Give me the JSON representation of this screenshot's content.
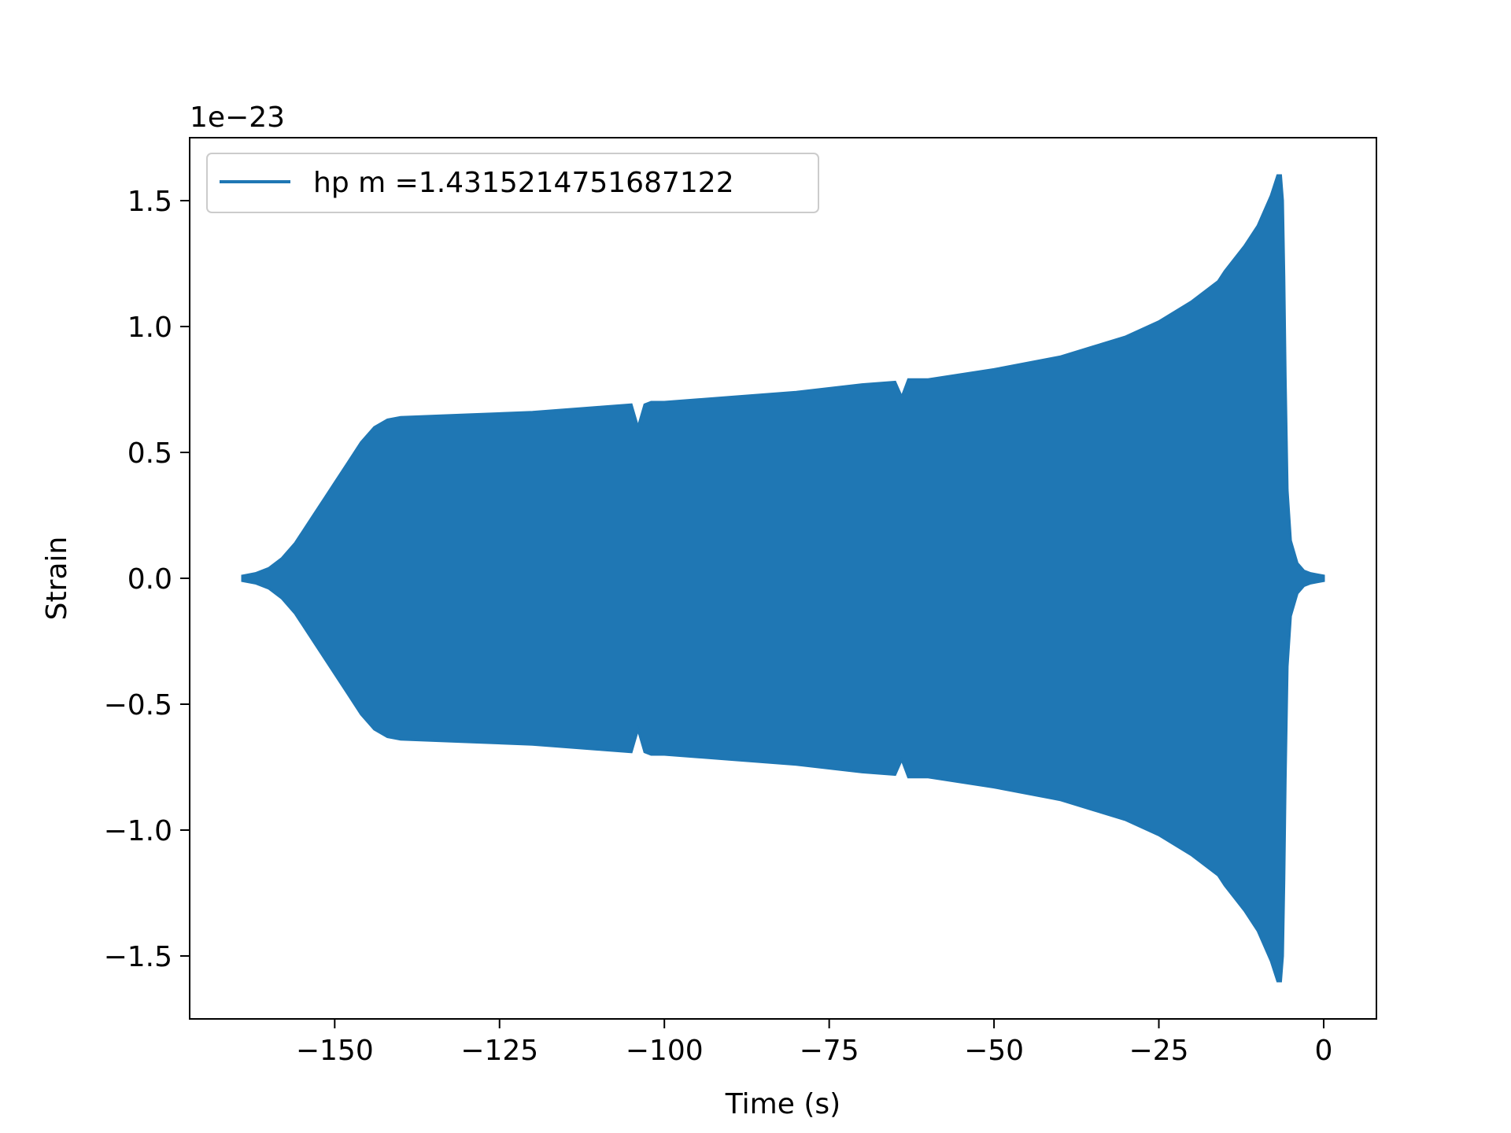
{
  "chart_data": {
    "type": "line",
    "title": "",
    "xlabel": "Time (s)",
    "ylabel": "Strain",
    "y_scale_label": "1e−23",
    "xlim": [
      -172,
      8
    ],
    "ylim": [
      -1.75,
      1.75
    ],
    "x_ticks": [
      -150,
      -125,
      -100,
      -75,
      -50,
      -25,
      0
    ],
    "x_tick_labels": [
      "−150",
      "−125",
      "−100",
      "−75",
      "−50",
      "−25",
      "0"
    ],
    "y_ticks": [
      -1.5,
      -1.0,
      -0.5,
      0.0,
      0.5,
      1.0,
      1.5
    ],
    "y_tick_labels": [
      "−1.5",
      "−1.0",
      "−0.5",
      "0.0",
      "0.5",
      "1.0",
      "1.5"
    ],
    "grid": false,
    "legend_position": "top-left",
    "series": [
      {
        "name": "hp m =1.4315214751687122",
        "color": "#1f77b4",
        "envelope_x": [
          -164,
          -162,
          -160,
          -158,
          -156,
          -154,
          -152,
          -150,
          -148,
          -146,
          -144,
          -142,
          -140,
          -130,
          -120,
          -110,
          -105,
          -104,
          -103,
          -102,
          -100,
          -90,
          -80,
          -70,
          -65,
          -64,
          -63,
          -60,
          -50,
          -40,
          -35,
          -30,
          -25,
          -20,
          -16,
          -15,
          -12,
          -10,
          -8,
          -7,
          -6.5,
          -6.2,
          -6.0,
          -5.8,
          -5.5,
          -5.0,
          -4.0,
          -3.0,
          -2.0,
          -1.0,
          0.0
        ],
        "envelope_upper": [
          0.01,
          0.02,
          0.04,
          0.08,
          0.14,
          0.22,
          0.3,
          0.38,
          0.46,
          0.54,
          0.6,
          0.63,
          0.64,
          0.65,
          0.66,
          0.68,
          0.69,
          0.6,
          0.69,
          0.7,
          0.7,
          0.72,
          0.74,
          0.77,
          0.78,
          0.72,
          0.79,
          0.79,
          0.83,
          0.88,
          0.92,
          0.96,
          1.02,
          1.1,
          1.18,
          1.22,
          1.32,
          1.4,
          1.52,
          1.6,
          1.6,
          1.5,
          1.2,
          0.8,
          0.35,
          0.15,
          0.06,
          0.03,
          0.02,
          0.015,
          0.01
        ],
        "envelope_lower": [
          -0.01,
          -0.02,
          -0.04,
          -0.08,
          -0.14,
          -0.22,
          -0.3,
          -0.38,
          -0.46,
          -0.54,
          -0.6,
          -0.63,
          -0.64,
          -0.65,
          -0.66,
          -0.68,
          -0.69,
          -0.6,
          -0.69,
          -0.7,
          -0.7,
          -0.72,
          -0.74,
          -0.77,
          -0.78,
          -0.72,
          -0.79,
          -0.79,
          -0.83,
          -0.88,
          -0.92,
          -0.96,
          -1.02,
          -1.1,
          -1.18,
          -1.22,
          -1.32,
          -1.4,
          -1.52,
          -1.6,
          -1.6,
          -1.5,
          -1.2,
          -0.8,
          -0.35,
          -0.15,
          -0.06,
          -0.03,
          -0.02,
          -0.015,
          -0.01
        ]
      }
    ]
  }
}
